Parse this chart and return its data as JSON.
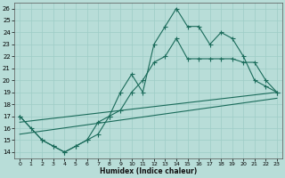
{
  "xlabel": "Humidex (Indice chaleur)",
  "xlim": [
    -0.5,
    23.5
  ],
  "ylim": [
    13.5,
    26.5
  ],
  "xticks": [
    0,
    1,
    2,
    3,
    4,
    5,
    6,
    7,
    8,
    9,
    10,
    11,
    12,
    13,
    14,
    15,
    16,
    17,
    18,
    19,
    20,
    21,
    22,
    23
  ],
  "yticks": [
    14,
    15,
    16,
    17,
    18,
    19,
    20,
    21,
    22,
    23,
    24,
    25,
    26
  ],
  "bg_color": "#b8ddd8",
  "grid_color": "#9eccc6",
  "line_color": "#1a6b5a",
  "line1_x": [
    0,
    1,
    2,
    3,
    4,
    5,
    6,
    7,
    8,
    9,
    10,
    11,
    12,
    13,
    14,
    15,
    16,
    17,
    18,
    19,
    20,
    21,
    22,
    23
  ],
  "line1_y": [
    17.0,
    16.0,
    15.0,
    14.5,
    14.0,
    14.5,
    15.0,
    16.5,
    17.0,
    19.0,
    20.5,
    19.0,
    23.0,
    24.5,
    26.0,
    24.5,
    24.5,
    23.0,
    24.0,
    23.5,
    22.0,
    20.0,
    19.5,
    19.0
  ],
  "line2_x": [
    0,
    2,
    3,
    4,
    5,
    6,
    7,
    8,
    9,
    10,
    11,
    12,
    13,
    14,
    15,
    16,
    17,
    18,
    19,
    20,
    21,
    22,
    23
  ],
  "line2_y": [
    17.0,
    15.0,
    14.5,
    14.0,
    14.5,
    15.0,
    15.5,
    17.0,
    17.5,
    19.0,
    20.0,
    21.5,
    22.0,
    23.5,
    21.8,
    21.8,
    21.8,
    21.8,
    21.8,
    21.5,
    21.5,
    20.0,
    19.0
  ],
  "line3_x": [
    0,
    23
  ],
  "line3_y": [
    16.5,
    19.0
  ],
  "line4_x": [
    0,
    23
  ],
  "line4_y": [
    15.5,
    18.5
  ]
}
